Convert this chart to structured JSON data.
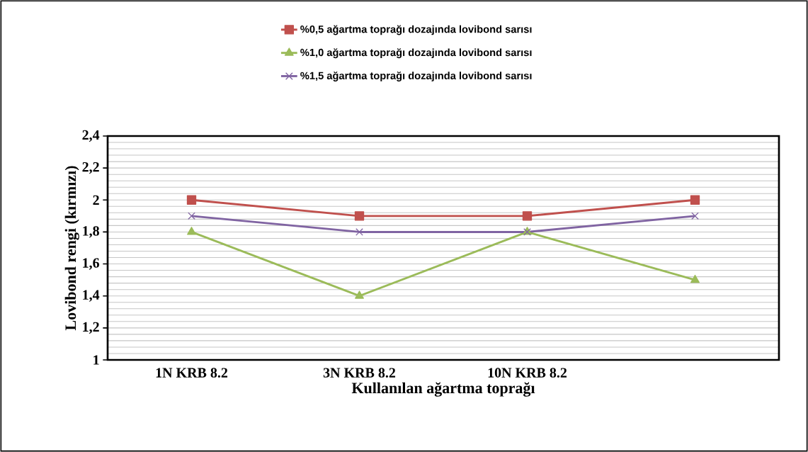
{
  "chart_data": {
    "type": "line",
    "xlabel": "Kullanılan ağartma toprağı",
    "ylabel": "Lovibond rengi (kırmızı)",
    "categories": [
      "1N KRB 8.2",
      "3N KRB 8.2",
      "10N KRB 8.2",
      null
    ],
    "series": [
      {
        "name": "%0,5 ağartma toprağı dozajında  lovibond sarısı",
        "color": "#c0504d",
        "marker": "square",
        "values": [
          2.0,
          1.9,
          1.9,
          2.0
        ]
      },
      {
        "name": "%1,0 ağartma toprağı dozajında  lovibond sarısı",
        "color": "#9bbb59",
        "marker": "triangle",
        "values": [
          1.8,
          1.4,
          1.8,
          1.5
        ]
      },
      {
        "name": "%1,5 ağartma toprağı dozajında  lovibond sarısı",
        "color": "#8064a2",
        "marker": "cross",
        "values": [
          1.9,
          1.8,
          1.8,
          1.9
        ]
      }
    ],
    "ylim": [
      1,
      2.4
    ],
    "yticks": [
      1,
      {
        "value": 1.2,
        "label": "1,2"
      },
      {
        "value": 1.4,
        "label": "1,4"
      },
      {
        "value": 1.6,
        "label": "1,6"
      },
      {
        "value": 1.8,
        "label": "1,8"
      },
      2,
      {
        "value": 2.2,
        "label": "2,2"
      },
      {
        "value": 2.4,
        "label": "2,4"
      }
    ],
    "grid": "y",
    "legend": "top",
    "line_style": "solid"
  }
}
